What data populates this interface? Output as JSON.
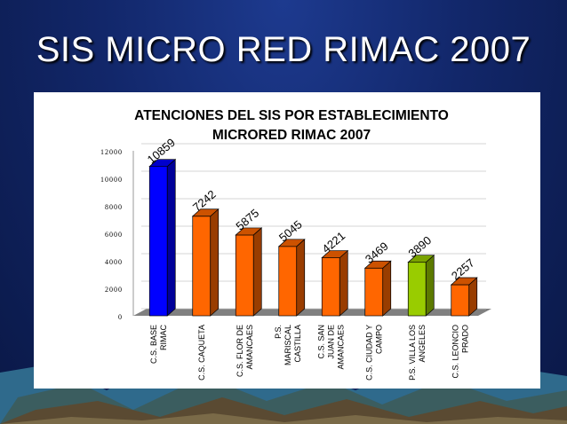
{
  "slide": {
    "title": "SIS MICRO RED RIMAC 2007"
  },
  "colors": {
    "background": "#12276a",
    "bar_default": "#ff6600",
    "bar_first": "#0000ff",
    "bar_highlight": "#99cc00",
    "floor": "#808080"
  },
  "chart_data": {
    "type": "bar",
    "title": "ATENCIONES DEL SIS POR ESTABLECIMIENTO",
    "subtitle": "MICRORED RIMAC 2007",
    "categories": [
      [
        "C.S. BASE",
        "RIMAC"
      ],
      [
        "C.S. CAQUETA"
      ],
      [
        "C.S. FLOR DE",
        "AMANCAES"
      ],
      [
        "P.S.",
        "MARISCAL",
        "CASTILLA"
      ],
      [
        "C.S. SAN",
        "JUAN DE",
        "AMANCAES"
      ],
      [
        "C.S. CIUDAD Y",
        "CAMPO"
      ],
      [
        "P.S. VILLA LOS",
        "ANGELES"
      ],
      [
        "C.S. LEONCIO",
        "PRADO"
      ]
    ],
    "values": [
      10859,
      7242,
      5875,
      5045,
      4221,
      3469,
      3890,
      2257
    ],
    "data_labels": [
      "10859",
      "7242",
      "5875",
      "5045",
      "4221",
      "3469",
      "3890",
      "2257"
    ],
    "bar_colors": [
      "#0000ff",
      "#ff6600",
      "#ff6600",
      "#ff6600",
      "#ff6600",
      "#ff6600",
      "#99cc00",
      "#ff6600"
    ],
    "yticks": [
      0,
      2000,
      4000,
      6000,
      8000,
      10000,
      12000
    ],
    "ytick_labels": [
      "0",
      "2000",
      "4000",
      "6000",
      "8000",
      "10000",
      "12000"
    ],
    "ylim": [
      0,
      12000
    ],
    "grid": true,
    "legend": "none",
    "style": "3d-column"
  }
}
